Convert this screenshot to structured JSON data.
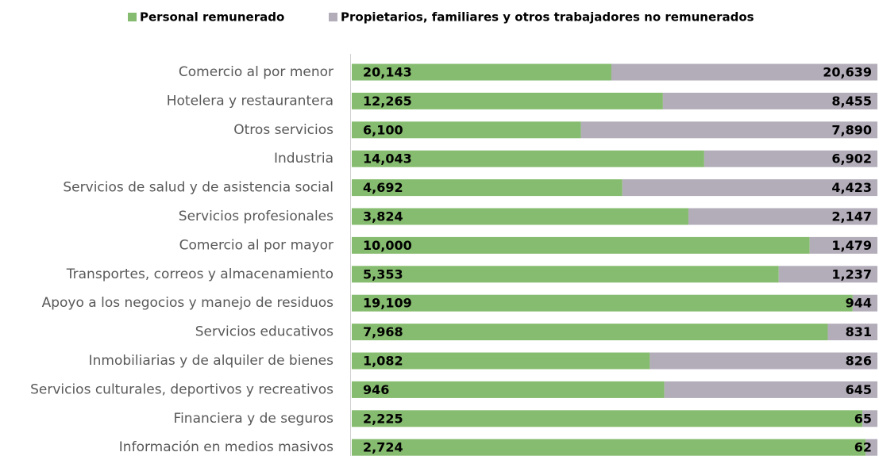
{
  "chart_data": {
    "type": "bar",
    "orientation": "horizontal",
    "stacking": "percent",
    "categories": [
      "Comercio al por menor",
      "Hotelera y restaurantera",
      "Otros servicios",
      "Industria",
      "Servicios de salud y de asistencia social",
      "Servicios profesionales",
      "Comercio al por mayor",
      "Transportes, correos y almacenamiento",
      "Apoyo a los negocios y manejo de residuos",
      "Servicios educativos",
      "Inmobiliarias y de alquiler de bienes",
      "Servicios culturales, deportivos y recreativos",
      "Financiera y de seguros",
      "Información en medios masivos"
    ],
    "series": [
      {
        "name": "Personal remunerado",
        "color": "#86bc6f",
        "values": [
          20143,
          12265,
          6100,
          14043,
          4692,
          3824,
          10000,
          5353,
          19109,
          7968,
          1082,
          946,
          2225,
          2724
        ],
        "value_labels": [
          "20,143",
          "12,265",
          "6,100",
          "14,043",
          "4,692",
          "3,824",
          "10,000",
          "5,353",
          "19,109",
          "7,968",
          "1,082",
          "946",
          "2,225",
          "2,724"
        ]
      },
      {
        "name": "Propietarios, familiares y otros trabajadores no remunerados",
        "color": "#b3adba",
        "values": [
          20639,
          8455,
          7890,
          6902,
          4423,
          2147,
          1479,
          1237,
          944,
          831,
          826,
          645,
          65,
          62
        ],
        "value_labels": [
          "20,639",
          "8,455",
          "7,890",
          "6,902",
          "4,423",
          "2,147",
          "1,479",
          "1,237",
          "944",
          "831",
          "826",
          "645",
          "65",
          "62"
        ]
      }
    ],
    "legend": "top"
  }
}
